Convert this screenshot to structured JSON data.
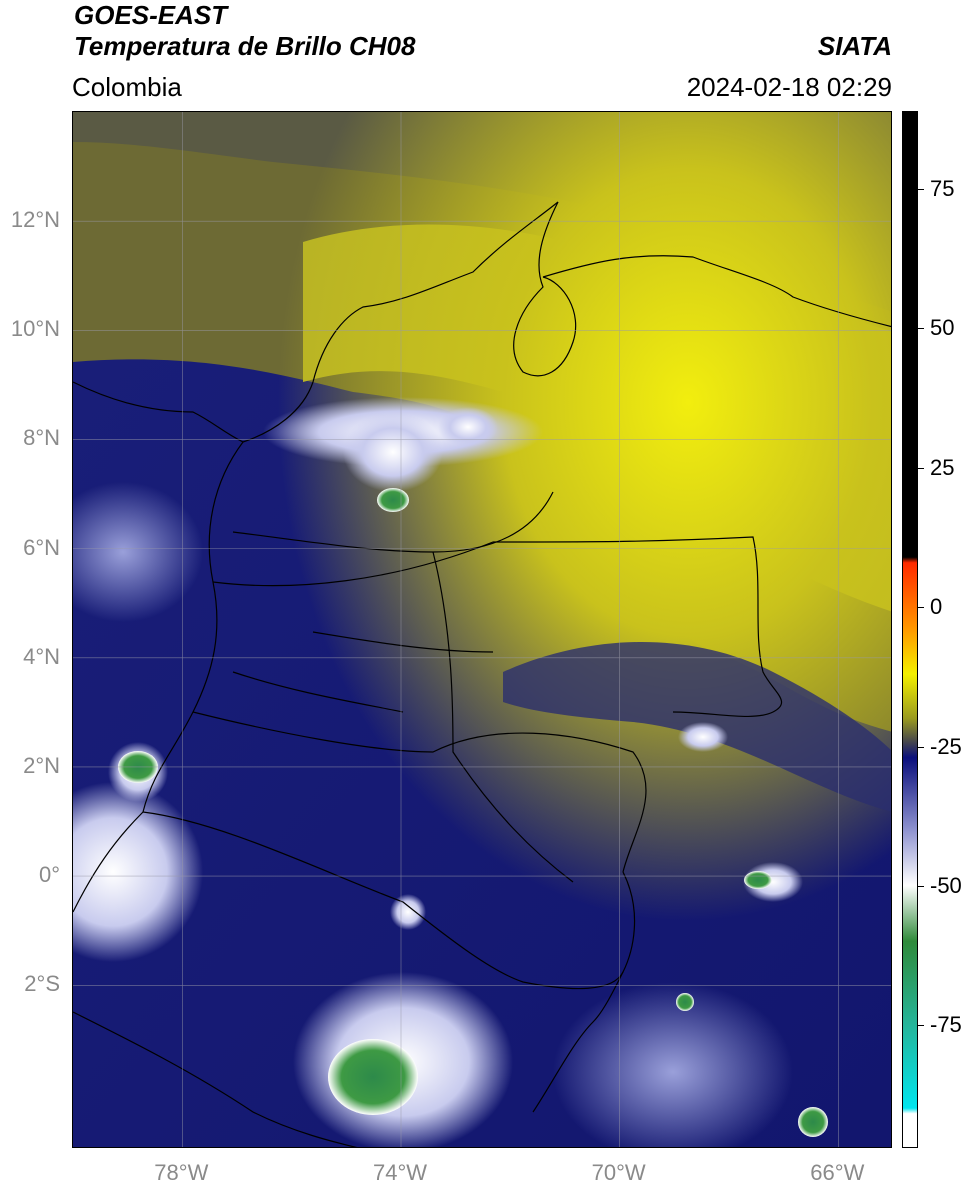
{
  "header": {
    "satellite": "GOES-EAST",
    "product": "Temperatura de Brillo CH08",
    "region": "Colombia",
    "agency": "SIATA",
    "datetime": "2024-02-18 02:29"
  },
  "map": {
    "lon_range": [
      -80,
      -65
    ],
    "lat_range": [
      -5,
      14
    ],
    "gridlines": true,
    "lat_labels": [
      "12°N",
      "10°N",
      "8°N",
      "6°N",
      "4°N",
      "2°N",
      "0°",
      "2°S"
    ],
    "lat_values": [
      12,
      10,
      8,
      6,
      4,
      2,
      0,
      -2
    ],
    "lon_labels": [
      "78°W",
      "74°W",
      "70°W",
      "66°W"
    ],
    "lon_values": [
      -78,
      -74,
      -70,
      -66
    ]
  },
  "colorbar": {
    "tick_labels": [
      "75",
      "50",
      "25",
      "0",
      "-25",
      "-50",
      "-75"
    ],
    "tick_values": [
      75,
      50,
      25,
      0,
      -25,
      -50,
      -75
    ],
    "range": [
      -97,
      89
    ],
    "colors": {
      "warm": "#000000",
      "red": "#ff2a00",
      "orange": "#ff9900",
      "yellow": "#f4f000",
      "olive": "#9a9a1e",
      "gray": "#4a4a4a",
      "navy": "#0b0f7c",
      "blue_light": "#8e92cf",
      "white": "#ffffff",
      "green": "#2f8a3a",
      "teal": "#25b59a",
      "cyan": "#00e5ef"
    }
  }
}
